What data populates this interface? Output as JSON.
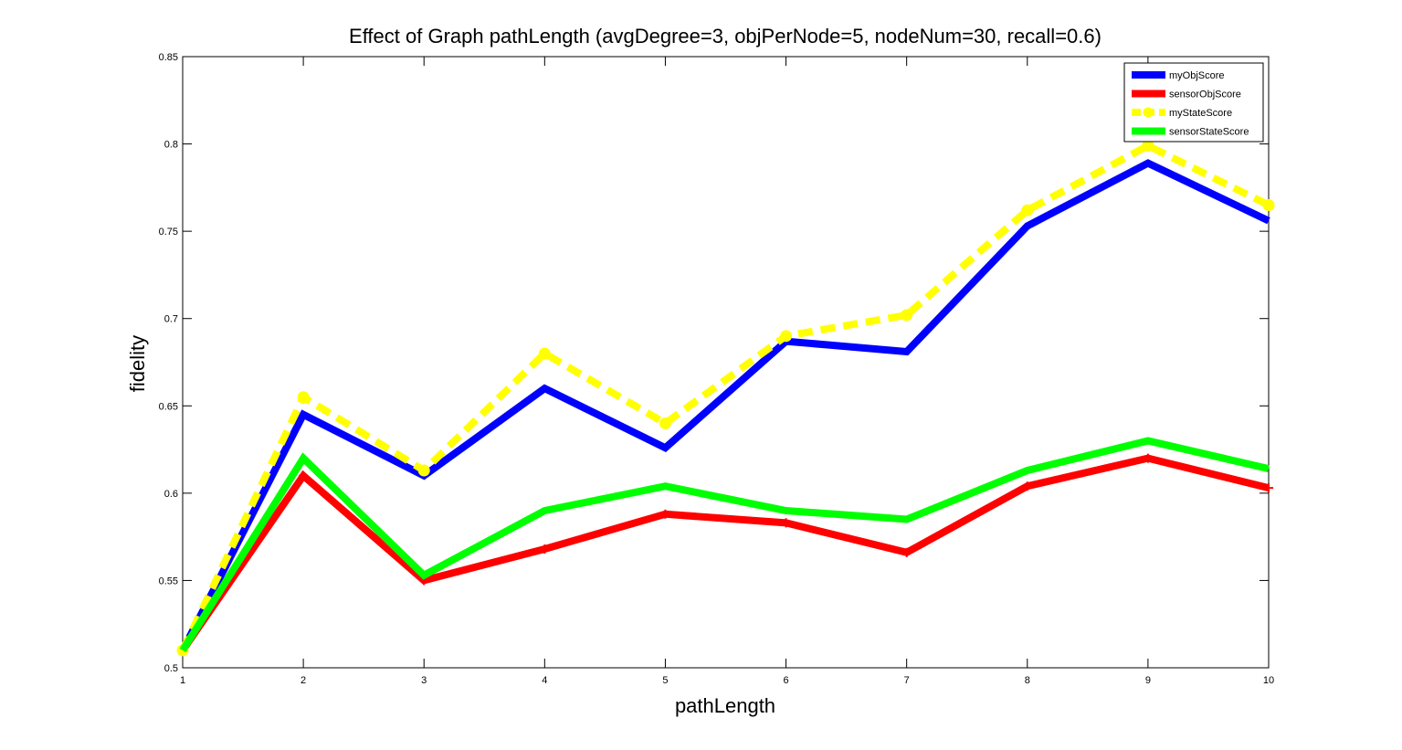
{
  "chart_data": {
    "type": "line",
    "title": "Effect of Graph pathLength (avgDegree=3, objPerNode=5, nodeNum=30, recall=0.6)",
    "xlabel": "pathLength",
    "ylabel": "fidelity",
    "xlim": [
      1,
      10
    ],
    "ylim": [
      0.5,
      0.85
    ],
    "x": [
      1,
      2,
      3,
      4,
      5,
      6,
      7,
      8,
      9,
      10
    ],
    "xticks": [
      "1",
      "2",
      "3",
      "4",
      "5",
      "6",
      "7",
      "8",
      "9",
      "10"
    ],
    "yticks": [
      "0.5",
      "0.55",
      "0.6",
      "0.65",
      "0.7",
      "0.75",
      "0.8",
      "0.85"
    ],
    "grid": false,
    "legend_position": "top-right",
    "series": [
      {
        "name": "myObjScore",
        "color": "#0000ff",
        "style": "solid",
        "marker": "none",
        "values": [
          0.51,
          0.645,
          0.61,
          0.66,
          0.626,
          0.687,
          0.681,
          0.753,
          0.789,
          0.756
        ]
      },
      {
        "name": "sensorObjScore",
        "color": "#ff0000",
        "style": "solid",
        "marker": "plus",
        "values": [
          0.51,
          0.61,
          0.55,
          0.568,
          0.588,
          0.583,
          0.566,
          0.604,
          0.62,
          0.603
        ]
      },
      {
        "name": "myStateScore",
        "color": "#ffff00",
        "style": "dashed",
        "marker": "circle",
        "values": [
          0.51,
          0.655,
          0.613,
          0.68,
          0.64,
          0.69,
          0.702,
          0.762,
          0.799,
          0.765
        ]
      },
      {
        "name": "sensorStateScore",
        "color": "#00ff00",
        "style": "solid",
        "marker": "none",
        "values": [
          0.51,
          0.62,
          0.553,
          0.59,
          0.604,
          0.59,
          0.585,
          0.613,
          0.63,
          0.614
        ]
      }
    ]
  }
}
